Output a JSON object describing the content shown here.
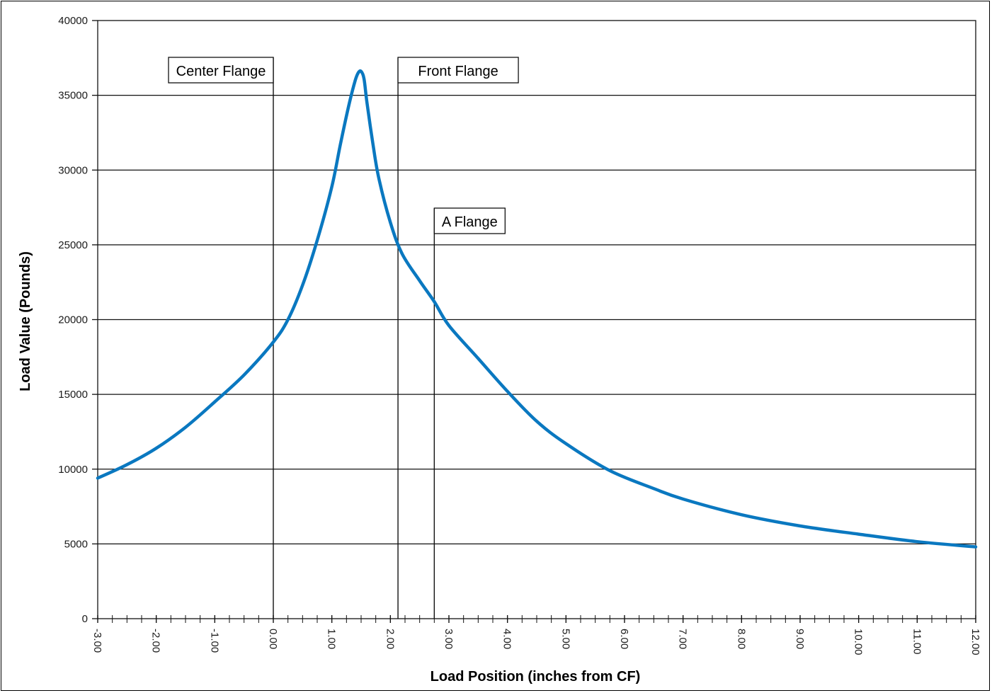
{
  "chart_data": {
    "type": "line",
    "title": "",
    "xlabel": "Load Position (inches from CF)",
    "ylabel": "Load Value (Pounds)",
    "xlim": [
      -3,
      12
    ],
    "ylim": [
      0,
      40000
    ],
    "grid": true,
    "legend": "none",
    "x_ticks": [
      "-3.00",
      "-2.00",
      "-1.00",
      "0.00",
      "1.00",
      "2.00",
      "3.00",
      "4.00",
      "5.00",
      "6.00",
      "7.00",
      "8.00",
      "9.00",
      "10.00",
      "11.00",
      "12.00"
    ],
    "y_ticks": [
      "0",
      "5000",
      "10000",
      "15000",
      "20000",
      "25000",
      "30000",
      "35000",
      "40000"
    ],
    "series": [
      {
        "color": "#0a78c0",
        "x": [
          -3.0,
          -2.5,
          -2.0,
          -1.5,
          -1.0,
          -0.5,
          0.0,
          0.25,
          0.5,
          0.75,
          1.0,
          1.15,
          1.3,
          1.4,
          1.45,
          1.5,
          1.55,
          1.6,
          1.7,
          1.8,
          2.0,
          2.2,
          2.5,
          2.75,
          3.0,
          3.5,
          4.0,
          4.5,
          5.0,
          5.75,
          6.5,
          7.0,
          8.0,
          9.0,
          10.0,
          11.0,
          12.0
        ],
        "y": [
          9400,
          10300,
          11400,
          12800,
          14500,
          16300,
          18500,
          20000,
          22300,
          25300,
          28900,
          31800,
          34500,
          36000,
          36500,
          36600,
          36100,
          34500,
          31800,
          29500,
          26500,
          24400,
          22600,
          21200,
          19600,
          17400,
          15200,
          13200,
          11700,
          9900,
          8700,
          8000,
          6950,
          6200,
          5650,
          5150,
          4800
        ]
      }
    ],
    "annotations": [
      {
        "label": "Center Flange",
        "x": 0.0
      },
      {
        "label": "Front Flange",
        "x": 2.13
      },
      {
        "label": "A Flange",
        "x": 2.75
      }
    ]
  }
}
